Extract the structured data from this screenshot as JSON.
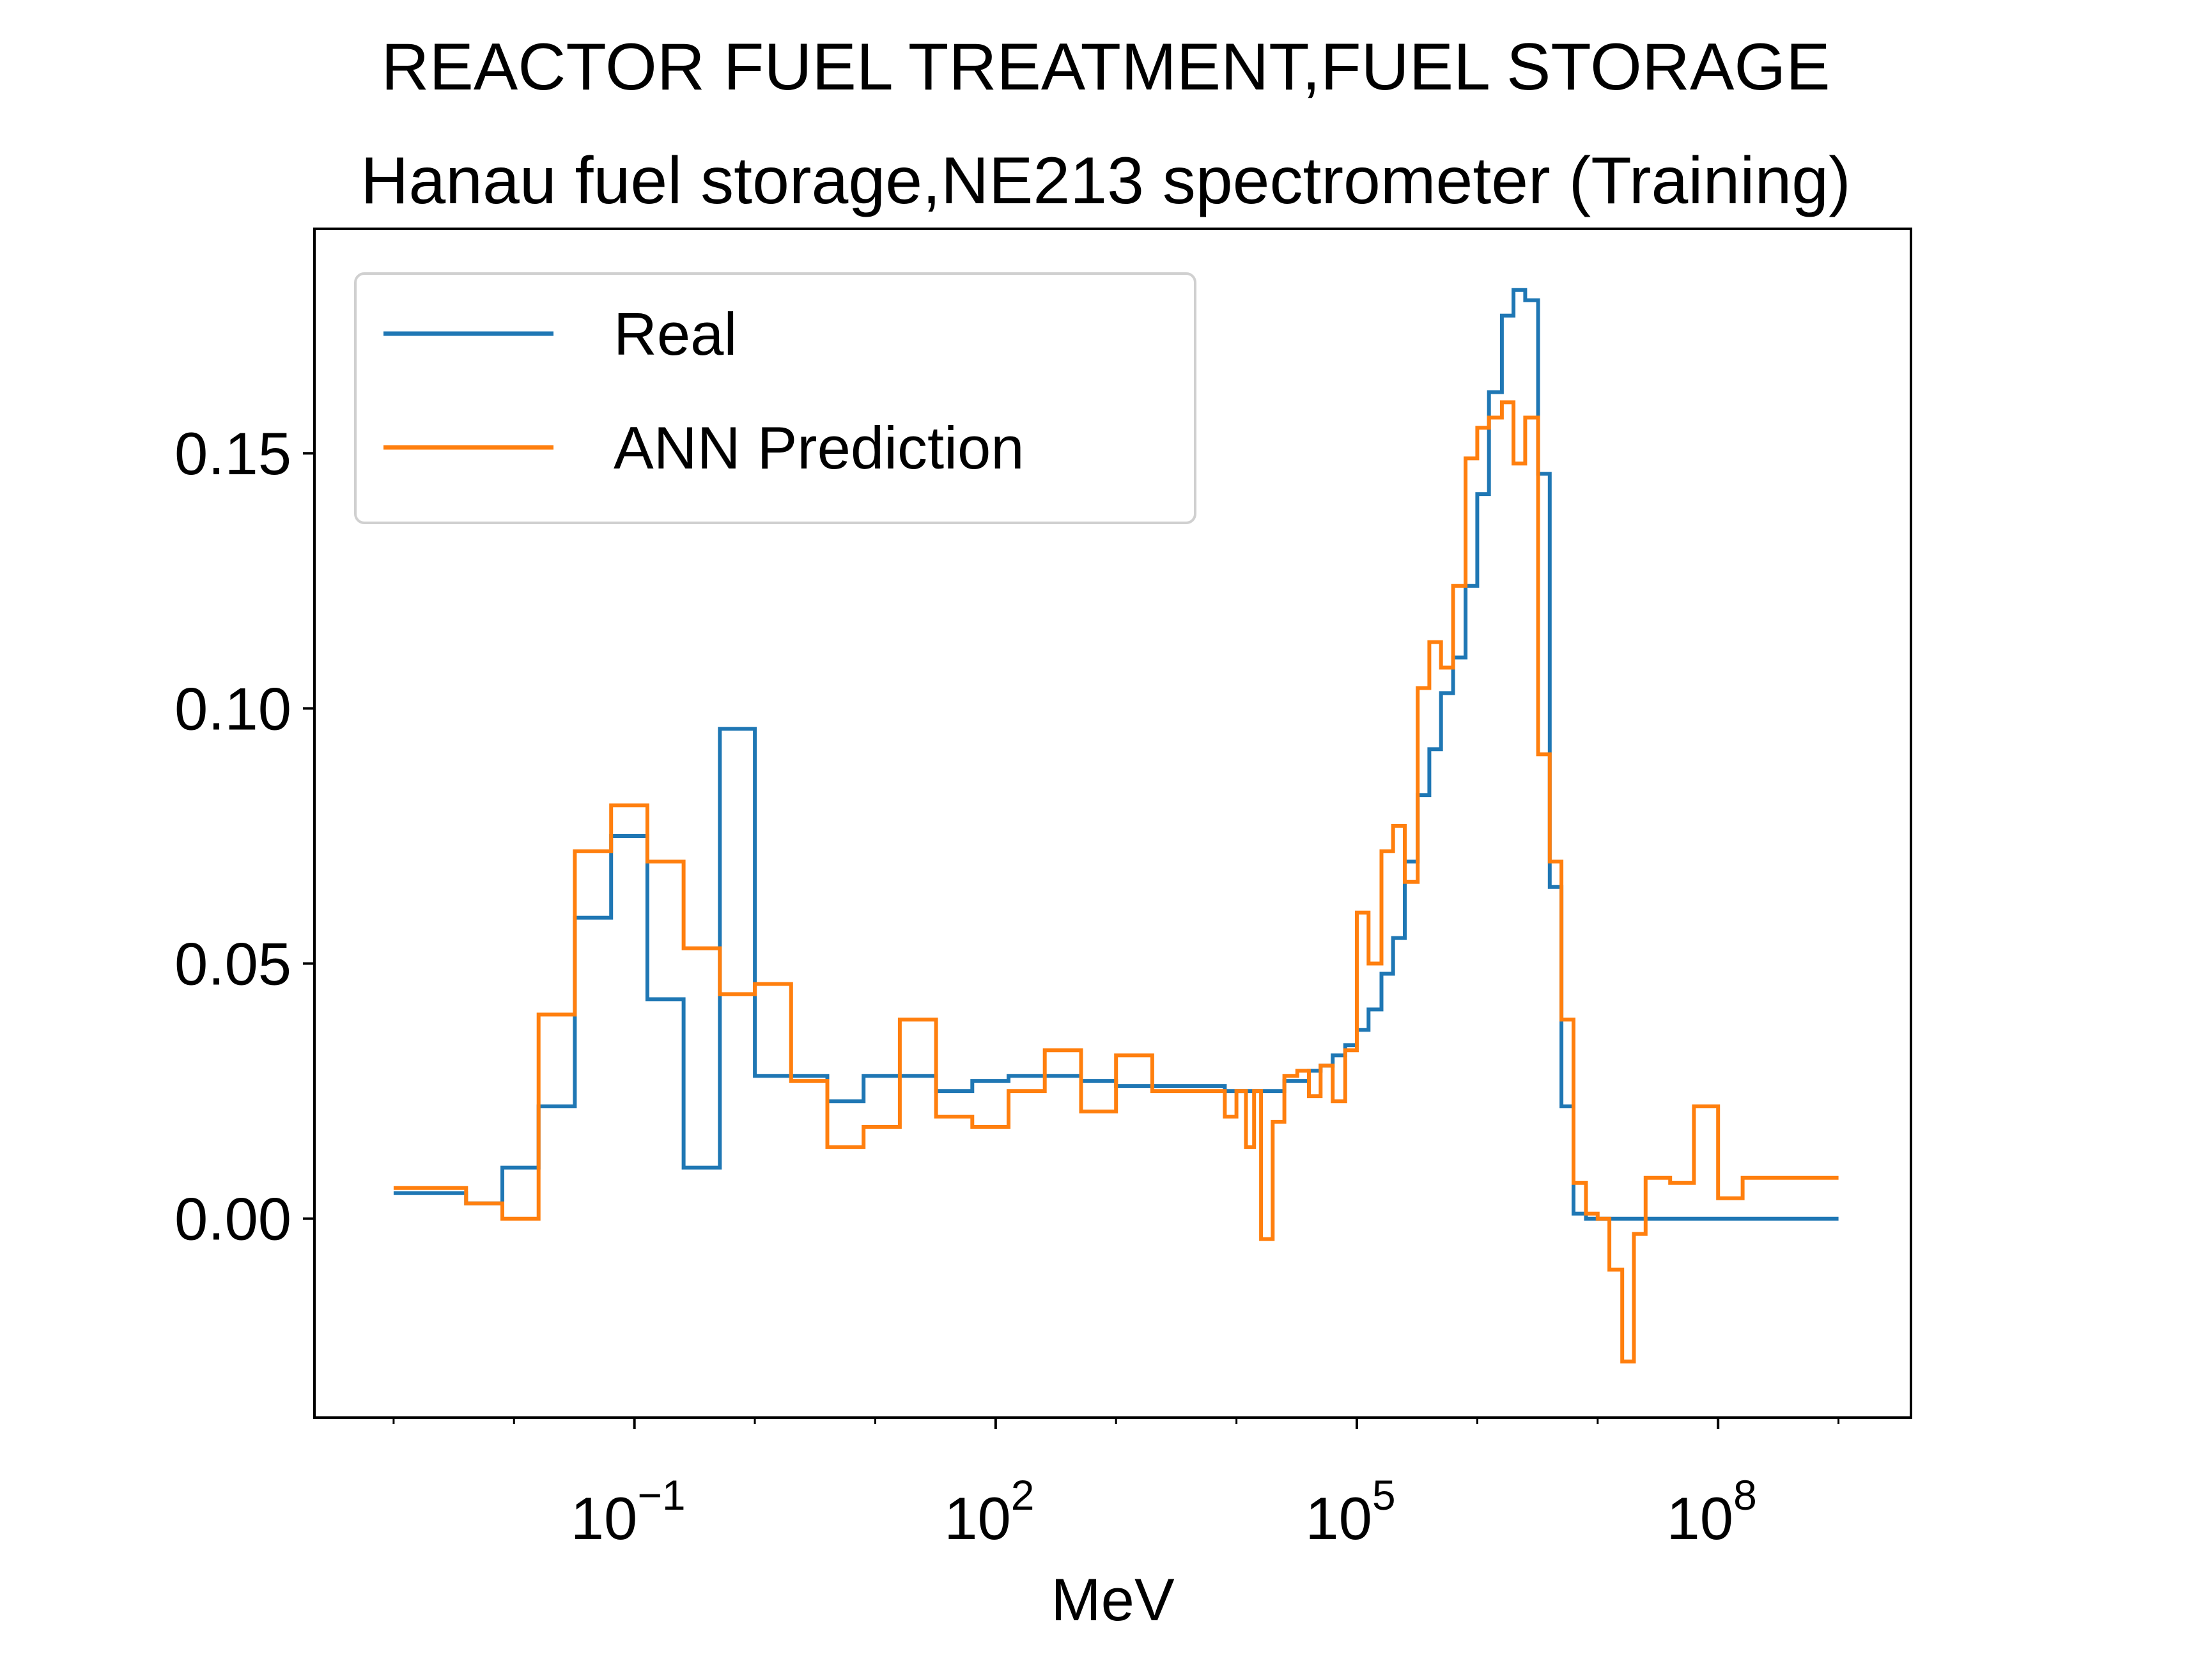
{
  "chart_data": {
    "type": "line",
    "step": true,
    "title": "REACTOR FUEL TREATMENT,FUEL STORAGE",
    "subtitle": "Hanau fuel storage,NE213 spectrometer (Training)",
    "xlabel": "MeV",
    "ylabel": "",
    "xscale": "log",
    "xlim": [
      0.00022,
      4000000000.0
    ],
    "ylim": [
      -0.039,
      0.194
    ],
    "grid": false,
    "legend_position": "top-left",
    "x_ticks": [
      {
        "value": 0.1,
        "base": "10",
        "exp": "−1"
      },
      {
        "value": 100,
        "base": "10",
        "exp": "2"
      },
      {
        "value": 100000,
        "base": "10",
        "exp": "5"
      },
      {
        "value": 100000000,
        "base": "10",
        "exp": "8"
      }
    ],
    "y_ticks": [
      {
        "value": 0.0,
        "label": "0.00"
      },
      {
        "value": 0.05,
        "label": "0.05"
      },
      {
        "value": 0.1,
        "label": "0.10"
      },
      {
        "value": 0.15,
        "label": "0.15"
      }
    ],
    "series": [
      {
        "name": "Real",
        "color": "#1f77b4",
        "x": [
          0.001,
          0.002,
          0.004,
          0.008,
          0.016,
          0.032,
          0.064,
          0.128,
          0.256,
          0.512,
          1.0,
          2.0,
          4.0,
          8.0,
          16.0,
          32.0,
          64.0,
          128.0,
          256.0,
          512.0,
          1000.0,
          2000.0,
          4000.0,
          8000.0,
          10000.0,
          12000.0,
          14000.0,
          16000.0,
          20000.0,
          25000.0,
          32000.0,
          40000.0,
          50000.0,
          63000.0,
          80000.0,
          100000.0,
          125000.0,
          160000.0,
          200000.0,
          250000.0,
          320000.0,
          400000.0,
          500000.0,
          630000.0,
          800000.0,
          1000000.0,
          1250000.0,
          1600000.0,
          2000000.0,
          2500000.0,
          3200000.0,
          4000000.0,
          5000000.0,
          6300000.0,
          8000000.0,
          10000000.0,
          12500000.0,
          16000000.0,
          20000000.0,
          25000000.0,
          40000000.0,
          63000000.0,
          100000000.0,
          160000000.0,
          250000000.0,
          400000000.0,
          630000000.0,
          1000000000.0
        ],
        "values": [
          0.005,
          0.005,
          0.003,
          0.01,
          0.022,
          0.059,
          0.075,
          0.043,
          0.01,
          0.096,
          0.028,
          0.028,
          0.023,
          0.028,
          0.028,
          0.025,
          0.027,
          0.028,
          0.028,
          0.027,
          0.026,
          0.026,
          0.026,
          0.025,
          0.025,
          0.025,
          0.025,
          0.025,
          0.025,
          0.027,
          0.027,
          0.029,
          0.03,
          0.032,
          0.034,
          0.037,
          0.041,
          0.048,
          0.055,
          0.07,
          0.083,
          0.092,
          0.103,
          0.11,
          0.124,
          0.142,
          0.162,
          0.177,
          0.182,
          0.18,
          0.146,
          0.065,
          0.022,
          0.001,
          0.0,
          0.0,
          0.0,
          0.0,
          0.0,
          0.0,
          0.0,
          0.0,
          0.0,
          0.0,
          0.0,
          0.0,
          0.0,
          0.0
        ]
      },
      {
        "name": "ANN Prediction",
        "color": "#ff7f0e",
        "x": [
          0.001,
          0.002,
          0.004,
          0.008,
          0.016,
          0.032,
          0.064,
          0.128,
          0.256,
          0.512,
          1.0,
          2.0,
          4.0,
          8.0,
          16.0,
          32.0,
          64.0,
          128.0,
          256.0,
          512.0,
          1000.0,
          2000.0,
          4000.0,
          8000.0,
          10000.0,
          12000.0,
          14000.0,
          16000.0,
          20000.0,
          25000.0,
          32000.0,
          40000.0,
          50000.0,
          63000.0,
          80000.0,
          100000.0,
          125000.0,
          160000.0,
          200000.0,
          250000.0,
          320000.0,
          400000.0,
          500000.0,
          630000.0,
          800000.0,
          1000000.0,
          1250000.0,
          1600000.0,
          2000000.0,
          2500000.0,
          3200000.0,
          4000000.0,
          5000000.0,
          6300000.0,
          8000000.0,
          10000000.0,
          12500000.0,
          16000000.0,
          20000000.0,
          25000000.0,
          40000000.0,
          63000000.0,
          100000000.0,
          160000000.0,
          250000000.0,
          400000000.0,
          630000000.0,
          1000000000.0
        ],
        "values": [
          0.006,
          0.006,
          0.003,
          0.0,
          0.04,
          0.072,
          0.081,
          0.07,
          0.053,
          0.044,
          0.046,
          0.027,
          0.014,
          0.018,
          0.039,
          0.02,
          0.018,
          0.025,
          0.033,
          0.021,
          0.032,
          0.025,
          0.025,
          0.02,
          0.025,
          0.014,
          0.025,
          -0.004,
          0.019,
          0.028,
          0.029,
          0.024,
          0.03,
          0.023,
          0.033,
          0.06,
          0.05,
          0.072,
          0.077,
          0.066,
          0.104,
          0.113,
          0.108,
          0.124,
          0.149,
          0.155,
          0.157,
          0.16,
          0.148,
          0.157,
          0.091,
          0.07,
          0.039,
          0.007,
          0.001,
          0.0,
          -0.01,
          -0.028,
          -0.003,
          0.008,
          0.007,
          0.022,
          0.004,
          0.008,
          0.008,
          0.008,
          0.008,
          0.008
        ]
      }
    ]
  }
}
